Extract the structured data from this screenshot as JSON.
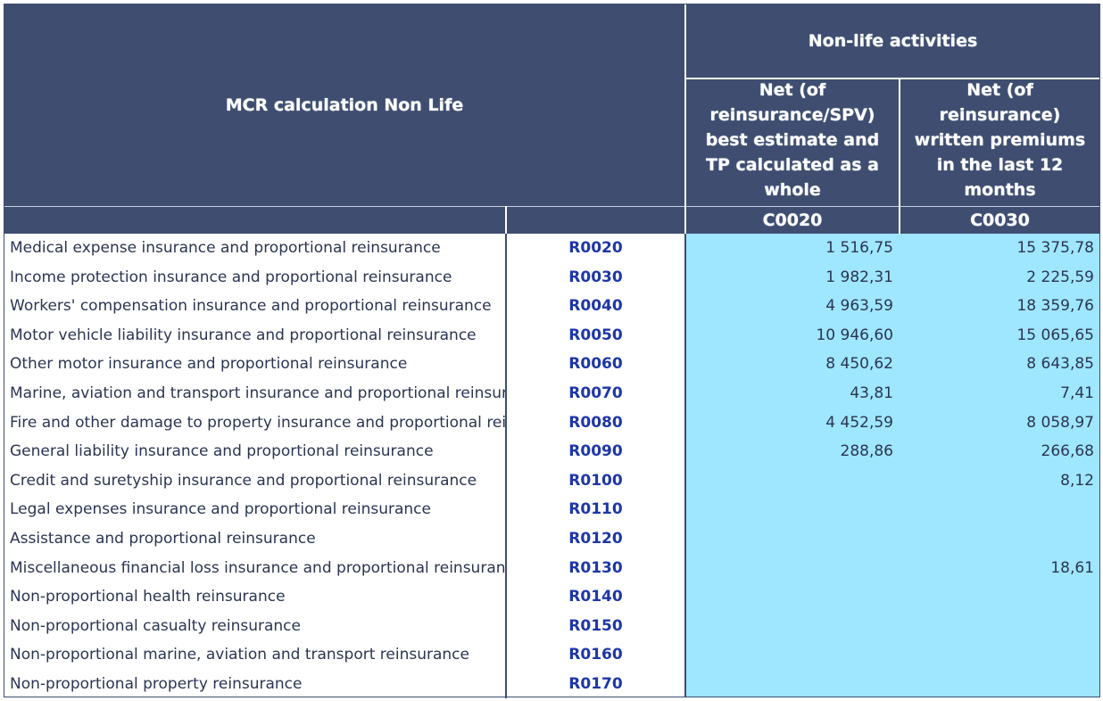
{
  "table": {
    "title": "MCR calculation Non Life",
    "group_header": "Non-life activities",
    "columns": [
      {
        "header": "Net (of\nreinsurance/SPV)\nbest estimate and\nTP calculated as a\nwhole",
        "code": "C0020"
      },
      {
        "header": "Net (of\nreinsurance)\nwritten premiums\nin the last 12\nmonths",
        "code": "C0030"
      }
    ],
    "rows": [
      {
        "label": "Medical expense insurance and proportional reinsurance",
        "code": "R0020",
        "c0020": "1 516,75",
        "c0030": "15 375,78"
      },
      {
        "label": "Income protection insurance and proportional reinsurance",
        "code": "R0030",
        "c0020": "1 982,31",
        "c0030": "2 225,59"
      },
      {
        "label": "Workers' compensation insurance and proportional reinsurance",
        "code": "R0040",
        "c0020": "4 963,59",
        "c0030": "18 359,76"
      },
      {
        "label": "Motor vehicle liability insurance and proportional reinsurance",
        "code": "R0050",
        "c0020": "10 946,60",
        "c0030": "15 065,65"
      },
      {
        "label": "Other motor insurance and proportional reinsurance",
        "code": "R0060",
        "c0020": "8 450,62",
        "c0030": "8 643,85"
      },
      {
        "label": "Marine, aviation and transport insurance and proportional reinsurance",
        "code": "R0070",
        "c0020": "43,81",
        "c0030": "7,41"
      },
      {
        "label": "Fire and other damage to property insurance and proportional reinsurance",
        "code": "R0080",
        "c0020": "4 452,59",
        "c0030": "8 058,97"
      },
      {
        "label": "General liability insurance and proportional reinsurance",
        "code": "R0090",
        "c0020": "288,86",
        "c0030": "266,68"
      },
      {
        "label": "Credit and suretyship insurance and proportional reinsurance",
        "code": "R0100",
        "c0020": "",
        "c0030": "8,12"
      },
      {
        "label": "Legal expenses insurance and proportional reinsurance",
        "code": "R0110",
        "c0020": "",
        "c0030": ""
      },
      {
        "label": "Assistance and proportional reinsurance",
        "code": "R0120",
        "c0020": "",
        "c0030": ""
      },
      {
        "label": "Miscellaneous financial loss insurance and proportional reinsurance",
        "code": "R0130",
        "c0020": "",
        "c0030": "18,61"
      },
      {
        "label": "Non-proportional health reinsurance",
        "code": "R0140",
        "c0020": "",
        "c0030": ""
      },
      {
        "label": "Non-proportional casualty reinsurance",
        "code": "R0150",
        "c0020": "",
        "c0030": ""
      },
      {
        "label": "Non-proportional marine, aviation and transport reinsurance",
        "code": "R0160",
        "c0020": "",
        "c0030": ""
      },
      {
        "label": "Non-proportional property reinsurance",
        "code": "R0170",
        "c0020": "",
        "c0030": ""
      }
    ]
  },
  "colors": {
    "header_bg": "#3e4d70",
    "value_area_bg": "#9fe6ff",
    "row_code_text": "#1d36a8"
  }
}
